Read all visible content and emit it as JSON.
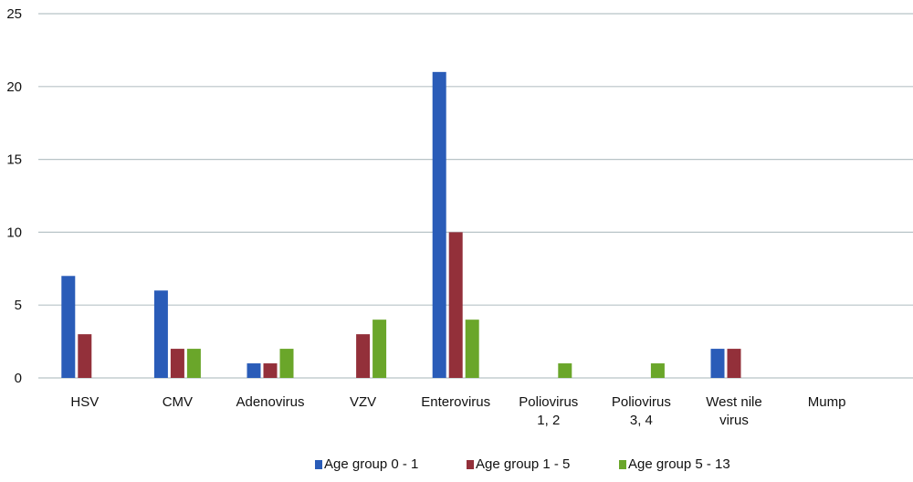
{
  "chart_data": {
    "type": "bar",
    "ylim": [
      0,
      25
    ],
    "yticks": [
      0,
      5,
      10,
      15,
      20,
      25
    ],
    "grid": true,
    "legend_position": "bottom",
    "categories": [
      [
        "HSV"
      ],
      [
        "CMV"
      ],
      [
        "Adenovirus"
      ],
      [
        "VZV"
      ],
      [
        "Enterovirus"
      ],
      [
        "Poliovirus",
        "1, 2"
      ],
      [
        "Poliovirus",
        "3, 4"
      ],
      [
        "West nile",
        "virus"
      ],
      [
        "Mump"
      ]
    ],
    "series": [
      {
        "name": "Age group 0 - 1",
        "color": "#2a5cb8",
        "values": [
          7,
          6,
          1,
          0,
          21,
          0,
          0,
          2,
          0
        ]
      },
      {
        "name": "Age group 1 - 5",
        "color": "#93303a",
        "values": [
          3,
          2,
          1,
          3,
          10,
          0,
          0,
          2,
          0
        ]
      },
      {
        "name": "Age group 5 - 13",
        "color": "#6aa62a",
        "values": [
          0,
          2,
          2,
          4,
          4,
          1,
          1,
          0,
          0
        ]
      }
    ]
  }
}
